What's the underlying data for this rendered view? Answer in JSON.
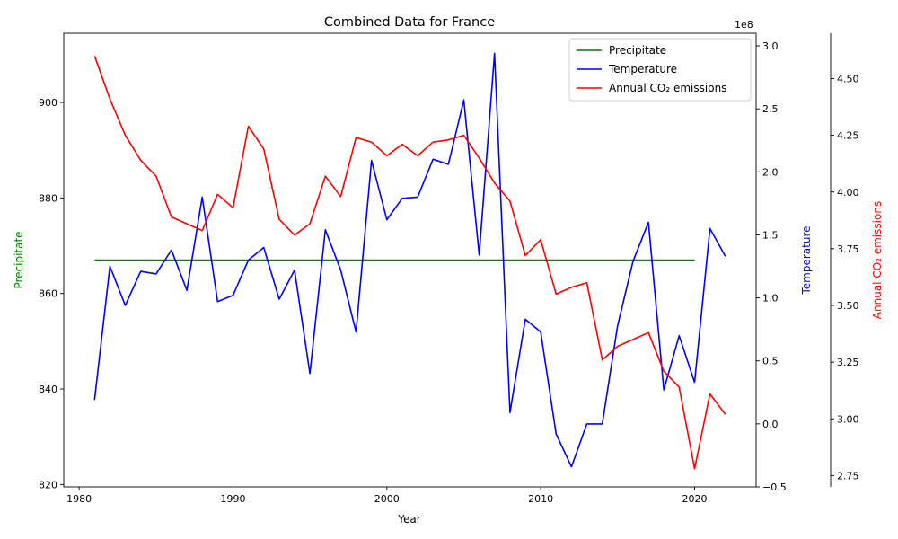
{
  "chart_data": {
    "type": "line",
    "title": "Combined Data for France",
    "xlabel": "Year",
    "xlim": [
      1979,
      2024
    ],
    "x_ticks": [
      1980,
      1990,
      2000,
      2010,
      2020
    ],
    "legend_position": "top-right",
    "grid": false,
    "axes": {
      "left": {
        "label": "Precipitate",
        "color": "#008000",
        "ylim": [
          819.5,
          914.5
        ],
        "ticks": [
          820,
          840,
          860,
          880,
          900
        ],
        "tick_labels": [
          "820",
          "840",
          "860",
          "880",
          "900"
        ]
      },
      "right": {
        "label": "Temperature",
        "color": "#0000ff",
        "ylim": [
          -0.5,
          3.1
        ],
        "ticks": [
          -0.5,
          0.0,
          0.5,
          1.0,
          1.5,
          2.0,
          2.5,
          3.0
        ],
        "tick_labels": [
          "−0.5",
          "0.0",
          "0.5",
          "1.0",
          "1.5",
          "2.0",
          "2.5",
          "3.0"
        ],
        "offset_label": "1e8"
      },
      "far_right": {
        "label": "Annual CO₂ emissions",
        "color": "#ff0000",
        "ylim": [
          2.7,
          4.7
        ],
        "ticks": [
          2.75,
          3.0,
          3.25,
          3.5,
          3.75,
          4.0,
          4.25,
          4.5
        ],
        "tick_labels": [
          "2.75",
          "3.00",
          "3.25",
          "3.50",
          "3.75",
          "4.00",
          "4.25",
          "4.50"
        ],
        "offset_label": "1e8"
      }
    },
    "series": [
      {
        "name": "Precipitate",
        "axis": "left",
        "color": "#008000",
        "x": [
          1981,
          2020
        ],
        "values": [
          867,
          867
        ]
      },
      {
        "name": "Temperature",
        "axis": "right",
        "color": "#0000ff",
        "x": [
          1981,
          1982,
          1983,
          1984,
          1985,
          1986,
          1987,
          1988,
          1989,
          1990,
          1991,
          1992,
          1993,
          1994,
          1995,
          1996,
          1997,
          1998,
          1999,
          2000,
          2001,
          2002,
          2003,
          2004,
          2005,
          2006,
          2007,
          2008,
          2009,
          2010,
          2011,
          2012,
          2013,
          2014,
          2015,
          2016,
          2017,
          2018,
          2019,
          2020,
          2021,
          2022
        ],
        "values": [
          0.19,
          1.25,
          0.94,
          1.21,
          1.19,
          1.38,
          1.06,
          1.8,
          0.97,
          1.02,
          1.3,
          1.4,
          0.99,
          1.22,
          0.4,
          1.54,
          1.22,
          0.73,
          2.09,
          1.62,
          1.79,
          1.8,
          2.1,
          2.06,
          2.57,
          1.34,
          2.94,
          0.09,
          0.83,
          0.73,
          -0.08,
          -0.34,
          0.0,
          0.0,
          0.78,
          1.29,
          1.6,
          0.27,
          0.7,
          0.33,
          1.55,
          1.33
        ]
      },
      {
        "name": "Annual CO₂ emissions",
        "axis": "far_right",
        "color": "#ff0000",
        "x": [
          1981,
          1982,
          1983,
          1984,
          1985,
          1986,
          1987,
          1988,
          1989,
          1990,
          1991,
          1992,
          1993,
          1994,
          1995,
          1996,
          1997,
          1998,
          1999,
          2000,
          2001,
          2002,
          2003,
          2004,
          2005,
          2006,
          2007,
          2008,
          2009,
          2010,
          2011,
          2012,
          2013,
          2014,
          2015,
          2016,
          2017,
          2018,
          2019,
          2020,
          2021,
          2022
        ],
        "values": [
          4.6,
          4.41,
          4.25,
          4.14,
          4.07,
          3.89,
          3.86,
          3.83,
          3.99,
          3.93,
          4.29,
          4.19,
          3.88,
          3.81,
          3.86,
          4.07,
          3.98,
          4.24,
          4.22,
          4.16,
          4.21,
          4.16,
          4.22,
          4.23,
          4.25,
          4.15,
          4.04,
          3.96,
          3.72,
          3.79,
          3.55,
          3.58,
          3.6,
          3.26,
          3.32,
          3.35,
          3.38,
          3.21,
          3.14,
          2.78,
          3.11,
          3.02
        ]
      }
    ]
  }
}
